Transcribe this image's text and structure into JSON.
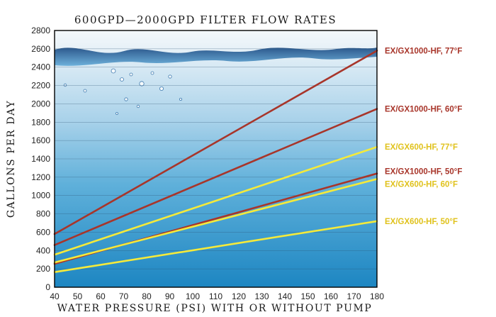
{
  "chart_data": {
    "type": "line",
    "title": "600GPD—2000GPD FILTER FLOW RATES",
    "xlabel": "WATER PRESSURE (PSI) WITH OR WITHOUT PUMP",
    "ylabel": "GALLONS PER DAY",
    "xlim": [
      40,
      180
    ],
    "ylim": [
      0,
      2800
    ],
    "xticks": [
      40,
      50,
      60,
      70,
      80,
      90,
      100,
      110,
      120,
      130,
      140,
      150,
      160,
      170,
      180
    ],
    "yticks": [
      0,
      200,
      400,
      600,
      800,
      1000,
      1200,
      1400,
      1600,
      1800,
      2000,
      2200,
      2400,
      2600,
      2800
    ],
    "grid": "horizontal",
    "legend": "right, direct labels at line ends",
    "series": [
      {
        "name": "EX/GX1000-HF, 77°F",
        "color": "#a8352a",
        "x": [
          40,
          180
        ],
        "y": [
          580,
          2580
        ]
      },
      {
        "name": "EX/GX1000-HF, 60°F",
        "color": "#a8352a",
        "x": [
          40,
          180
        ],
        "y": [
          460,
          1945
        ]
      },
      {
        "name": "EX/GX600-HF, 77°F",
        "color": "#f5ea3a",
        "x": [
          40,
          180
        ],
        "y": [
          355,
          1530
        ]
      },
      {
        "name": "EX/GX1000-HF, 50°F",
        "color": "#a8352a",
        "x": [
          40,
          180
        ],
        "y": [
          255,
          1240
        ]
      },
      {
        "name": "EX/GX600-HF, 60°F",
        "color": "#f5ea3a",
        "x": [
          40,
          180
        ],
        "y": [
          270,
          1180
        ]
      },
      {
        "name": "EX/GX600-HF, 50°F",
        "color": "#f5ea3a",
        "x": [
          40,
          180
        ],
        "y": [
          165,
          720
        ]
      }
    ],
    "label_colors": {
      "brown": "#a8352a",
      "yellow": "#e0c21c"
    }
  }
}
